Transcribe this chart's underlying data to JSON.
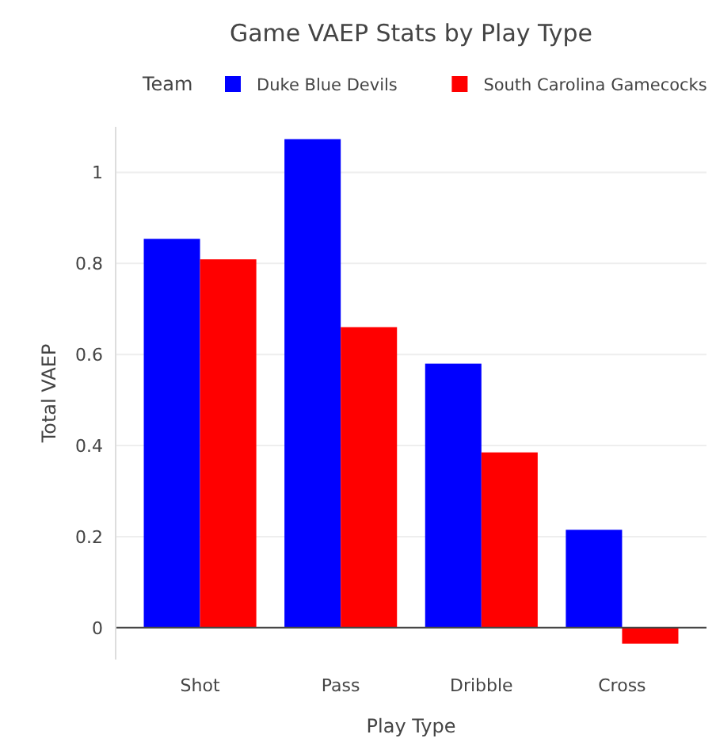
{
  "chart_data": {
    "type": "bar",
    "title": "Game VAEP Stats by Play Type",
    "xlabel": "Play Type",
    "ylabel": "Total VAEP",
    "legend_title": "Team",
    "legend": "top",
    "grid": "y",
    "categories": [
      "Shot",
      "Pass",
      "Dribble",
      "Cross"
    ],
    "series": [
      {
        "name": "Duke Blue Devils",
        "color": "#0000ff",
        "values": [
          0.854,
          1.073,
          0.58,
          0.215
        ]
      },
      {
        "name": "South Carolina Gamecocks",
        "color": "#ff0000",
        "values": [
          0.809,
          0.66,
          0.385,
          -0.035
        ]
      }
    ],
    "ylim": [
      -0.07,
      1.1
    ],
    "yticks": [
      0,
      0.2,
      0.4,
      0.6,
      0.8,
      1
    ]
  }
}
